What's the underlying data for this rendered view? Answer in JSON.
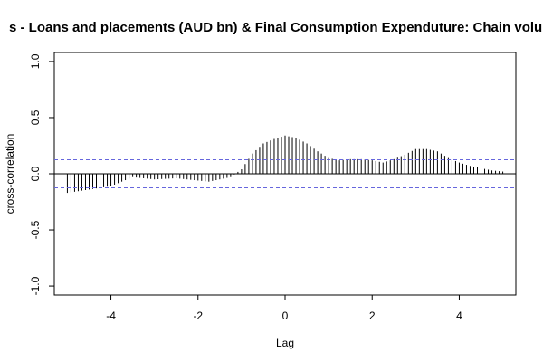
{
  "chart_data": {
    "type": "bar",
    "title": "s - Loans and placements (AUD bn) & Final Consumption Expenduture: Chain volume m",
    "xlabel": "Lag",
    "ylabel": "cross-correlation",
    "xlim": [
      -5.3,
      5.3
    ],
    "ylim": [
      -1.08,
      1.08
    ],
    "xticks": [
      -4,
      -2,
      0,
      2,
      4
    ],
    "xtick_labels": [
      "-4",
      "-2",
      "0",
      "2",
      "4"
    ],
    "yticks": [
      -1.0,
      -0.5,
      0.0,
      0.5,
      1.0
    ],
    "ytick_labels": [
      "-1.0",
      "-0.5",
      "0.0",
      "0.5",
      "1.0"
    ],
    "confidence_band": [
      -0.125,
      0.125
    ],
    "grid": false,
    "legend": "none",
    "colors": {
      "bars": "#000000",
      "confidence": "#6666dd",
      "zero_line": "#000000"
    },
    "lag_points": [
      [
        -5.0,
        -0.17
      ],
      [
        -4.0,
        -0.11
      ],
      [
        -3.5,
        -0.03
      ],
      [
        -3.0,
        -0.05
      ],
      [
        -2.5,
        -0.04
      ],
      [
        -2.0,
        -0.06
      ],
      [
        -1.75,
        -0.07
      ],
      [
        -1.25,
        -0.03
      ],
      [
        -1.0,
        0.04
      ],
      [
        -0.75,
        0.18
      ],
      [
        -0.5,
        0.27
      ],
      [
        -0.25,
        0.31
      ],
      [
        0.0,
        0.34
      ],
      [
        0.25,
        0.32
      ],
      [
        0.5,
        0.27
      ],
      [
        0.75,
        0.2
      ],
      [
        1.0,
        0.14
      ],
      [
        1.25,
        0.12
      ],
      [
        1.5,
        0.13
      ],
      [
        1.75,
        0.13
      ],
      [
        2.0,
        0.12
      ],
      [
        2.25,
        0.1
      ],
      [
        2.5,
        0.13
      ],
      [
        2.75,
        0.17
      ],
      [
        3.0,
        0.22
      ],
      [
        3.25,
        0.22
      ],
      [
        3.5,
        0.2
      ],
      [
        3.75,
        0.14
      ],
      [
        4.0,
        0.1
      ],
      [
        4.25,
        0.07
      ],
      [
        4.5,
        0.05
      ],
      [
        4.75,
        0.03
      ],
      [
        5.0,
        0.02
      ]
    ]
  }
}
